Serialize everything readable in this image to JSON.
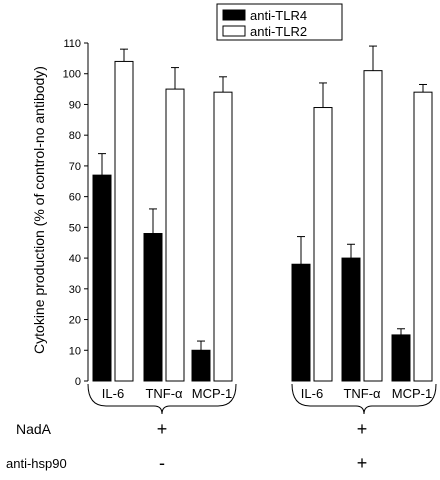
{
  "chart_data": {
    "type": "bar",
    "ylabel": "Cytokine production (% of control-no antibody)",
    "ylim": [
      0,
      110
    ],
    "yticks": [
      0,
      10,
      20,
      30,
      40,
      50,
      60,
      70,
      80,
      90,
      100,
      110
    ],
    "categories": [
      "IL-6",
      "TNF-α",
      "MCP-1",
      "IL-6",
      "TNF-α",
      "MCP-1"
    ],
    "series": [
      {
        "name": "anti-TLR4",
        "color": "#000000",
        "values": [
          67,
          48,
          10,
          38,
          40,
          15
        ],
        "errors": [
          7,
          8,
          3,
          9,
          4.5,
          2
        ]
      },
      {
        "name": "anti-TLR2",
        "color": "#ffffff",
        "values": [
          104,
          95,
          94,
          89,
          101,
          94
        ],
        "errors": [
          4,
          7,
          5,
          8,
          8,
          2.5
        ]
      }
    ],
    "legend_position": "top",
    "conditions": {
      "rows": [
        {
          "label": "NadA",
          "values": [
            "+",
            "+"
          ]
        },
        {
          "label": "anti-hsp90",
          "values": [
            "-",
            "+"
          ]
        }
      ]
    }
  }
}
